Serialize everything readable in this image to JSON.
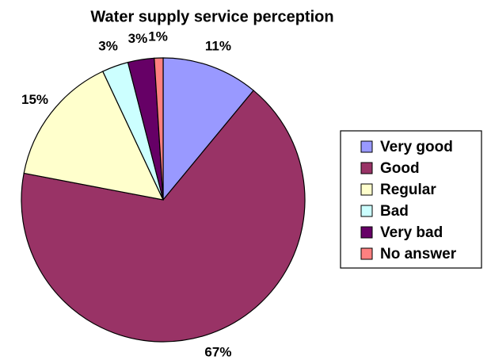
{
  "chart_data": {
    "type": "pie",
    "title": "Water supply service perception",
    "categories": [
      "Very good",
      "Good",
      "Regular",
      "Bad",
      "Very bad",
      "No answer"
    ],
    "values": [
      11,
      67,
      15,
      3,
      3,
      1
    ],
    "value_labels": [
      "11%",
      "67%",
      "15%",
      "3%",
      "3%",
      "1%"
    ],
    "colors": [
      "#9999ff",
      "#993366",
      "#ffffcc",
      "#ccffff",
      "#660066",
      "#ff8080"
    ],
    "legend": "right"
  }
}
